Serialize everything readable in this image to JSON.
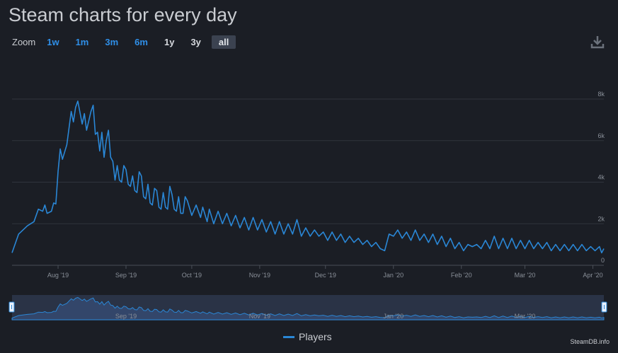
{
  "page": {
    "title": "Steam charts for every day"
  },
  "zoom": {
    "label": "Zoom",
    "buttons": [
      {
        "label": "1w",
        "style": "blue"
      },
      {
        "label": "1m",
        "style": "blue"
      },
      {
        "label": "3m",
        "style": "blue"
      },
      {
        "label": "6m",
        "style": "blue"
      },
      {
        "label": "1y",
        "style": "dark"
      },
      {
        "label": "3y",
        "style": "dark"
      },
      {
        "label": "all",
        "style": "active"
      }
    ]
  },
  "download_icon": "download-icon",
  "legend": {
    "label": "Players",
    "color": "#2a87d6"
  },
  "credit": "SteamDB.info",
  "chart_data": {
    "type": "line",
    "series": [
      {
        "name": "Players",
        "color": "#2a87d6",
        "points": [
          [
            "2019-07-11",
            600
          ],
          [
            "2019-07-14",
            1500
          ],
          [
            "2019-07-18",
            1900
          ],
          [
            "2019-07-21",
            2100
          ],
          [
            "2019-07-23",
            2700
          ],
          [
            "2019-07-25",
            2600
          ],
          [
            "2019-07-26",
            2900
          ],
          [
            "2019-07-27",
            2500
          ],
          [
            "2019-07-29",
            2600
          ],
          [
            "2019-07-30",
            3000
          ],
          [
            "2019-07-31",
            2950
          ],
          [
            "2019-08-01",
            4500
          ],
          [
            "2019-08-02",
            5600
          ],
          [
            "2019-08-03",
            5100
          ],
          [
            "2019-08-05",
            5800
          ],
          [
            "2019-08-07",
            7400
          ],
          [
            "2019-08-08",
            6900
          ],
          [
            "2019-08-09",
            7600
          ],
          [
            "2019-08-10",
            7900
          ],
          [
            "2019-08-12",
            6800
          ],
          [
            "2019-08-13",
            7300
          ],
          [
            "2019-08-14",
            6500
          ],
          [
            "2019-08-16",
            7400
          ],
          [
            "2019-08-17",
            7700
          ],
          [
            "2019-08-18",
            6300
          ],
          [
            "2019-08-19",
            6400
          ],
          [
            "2019-08-20",
            5500
          ],
          [
            "2019-08-21",
            6400
          ],
          [
            "2019-08-22",
            5200
          ],
          [
            "2019-08-23",
            6000
          ],
          [
            "2019-08-24",
            6500
          ],
          [
            "2019-08-25",
            5200
          ],
          [
            "2019-08-26",
            5000
          ],
          [
            "2019-08-27",
            4100
          ],
          [
            "2019-08-28",
            4800
          ],
          [
            "2019-08-29",
            4100
          ],
          [
            "2019-08-30",
            4000
          ],
          [
            "2019-08-31",
            4800
          ],
          [
            "2019-09-01",
            4600
          ],
          [
            "2019-09-02",
            3900
          ],
          [
            "2019-09-03",
            3800
          ],
          [
            "2019-09-04",
            4300
          ],
          [
            "2019-09-05",
            3600
          ],
          [
            "2019-09-06",
            3500
          ],
          [
            "2019-09-07",
            4500
          ],
          [
            "2019-09-08",
            4300
          ],
          [
            "2019-09-09",
            3300
          ],
          [
            "2019-09-10",
            3200
          ],
          [
            "2019-09-11",
            3900
          ],
          [
            "2019-09-12",
            3000
          ],
          [
            "2019-09-13",
            2900
          ],
          [
            "2019-09-14",
            3700
          ],
          [
            "2019-09-15",
            3600
          ],
          [
            "2019-09-16",
            2800
          ],
          [
            "2019-09-17",
            2700
          ],
          [
            "2019-09-18",
            3500
          ],
          [
            "2019-09-19",
            2800
          ],
          [
            "2019-09-20",
            2700
          ],
          [
            "2019-09-21",
            3800
          ],
          [
            "2019-09-22",
            3400
          ],
          [
            "2019-09-23",
            2700
          ],
          [
            "2019-09-24",
            2600
          ],
          [
            "2019-09-25",
            3300
          ],
          [
            "2019-09-26",
            2500
          ],
          [
            "2019-09-27",
            2500
          ],
          [
            "2019-09-28",
            3300
          ],
          [
            "2019-09-29",
            3100
          ],
          [
            "2019-10-01",
            2400
          ],
          [
            "2019-10-03",
            2900
          ],
          [
            "2019-10-05",
            2300
          ],
          [
            "2019-10-06",
            2800
          ],
          [
            "2019-10-08",
            2100
          ],
          [
            "2019-10-09",
            2700
          ],
          [
            "2019-10-11",
            2000
          ],
          [
            "2019-10-13",
            2600
          ],
          [
            "2019-10-15",
            2000
          ],
          [
            "2019-10-17",
            2500
          ],
          [
            "2019-10-19",
            1900
          ],
          [
            "2019-10-21",
            2400
          ],
          [
            "2019-10-23",
            1800
          ],
          [
            "2019-10-25",
            2300
          ],
          [
            "2019-10-27",
            1700
          ],
          [
            "2019-10-29",
            2300
          ],
          [
            "2019-10-31",
            1700
          ],
          [
            "2019-11-02",
            2200
          ],
          [
            "2019-11-04",
            1600
          ],
          [
            "2019-11-06",
            2100
          ],
          [
            "2019-11-08",
            1500
          ],
          [
            "2019-11-10",
            2100
          ],
          [
            "2019-11-12",
            1500
          ],
          [
            "2019-11-14",
            2000
          ],
          [
            "2019-11-16",
            1500
          ],
          [
            "2019-11-18",
            2200
          ],
          [
            "2019-11-20",
            1400
          ],
          [
            "2019-11-22",
            1800
          ],
          [
            "2019-11-24",
            1400
          ],
          [
            "2019-11-26",
            1700
          ],
          [
            "2019-11-28",
            1400
          ],
          [
            "2019-11-30",
            1600
          ],
          [
            "2019-12-02",
            1200
          ],
          [
            "2019-12-04",
            1600
          ],
          [
            "2019-12-06",
            1200
          ],
          [
            "2019-12-08",
            1500
          ],
          [
            "2019-12-10",
            1100
          ],
          [
            "2019-12-12",
            1400
          ],
          [
            "2019-12-14",
            1100
          ],
          [
            "2019-12-16",
            1300
          ],
          [
            "2019-12-18",
            1000
          ],
          [
            "2019-12-20",
            1200
          ],
          [
            "2019-12-22",
            900
          ],
          [
            "2019-12-24",
            1100
          ],
          [
            "2019-12-26",
            800
          ],
          [
            "2019-12-28",
            700
          ],
          [
            "2019-12-30",
            1500
          ],
          [
            "2020-01-01",
            1400
          ],
          [
            "2020-01-03",
            1700
          ],
          [
            "2020-01-05",
            1300
          ],
          [
            "2020-01-07",
            1600
          ],
          [
            "2020-01-09",
            1200
          ],
          [
            "2020-01-11",
            1700
          ],
          [
            "2020-01-13",
            1200
          ],
          [
            "2020-01-15",
            1500
          ],
          [
            "2020-01-17",
            1100
          ],
          [
            "2020-01-19",
            1500
          ],
          [
            "2020-01-21",
            1000
          ],
          [
            "2020-01-23",
            1400
          ],
          [
            "2020-01-25",
            900
          ],
          [
            "2020-01-27",
            1300
          ],
          [
            "2020-01-29",
            800
          ],
          [
            "2020-01-31",
            1100
          ],
          [
            "2020-02-02",
            700
          ],
          [
            "2020-02-04",
            1000
          ],
          [
            "2020-02-06",
            900
          ],
          [
            "2020-02-08",
            1000
          ],
          [
            "2020-02-10",
            800
          ],
          [
            "2020-02-12",
            1200
          ],
          [
            "2020-02-14",
            800
          ],
          [
            "2020-02-16",
            1400
          ],
          [
            "2020-02-18",
            800
          ],
          [
            "2020-02-20",
            1300
          ],
          [
            "2020-02-22",
            800
          ],
          [
            "2020-02-24",
            1300
          ],
          [
            "2020-02-26",
            800
          ],
          [
            "2020-02-28",
            1200
          ],
          [
            "2020-03-01",
            800
          ],
          [
            "2020-03-03",
            1200
          ],
          [
            "2020-03-05",
            800
          ],
          [
            "2020-03-07",
            1100
          ],
          [
            "2020-03-09",
            800
          ],
          [
            "2020-03-11",
            1100
          ],
          [
            "2020-03-13",
            700
          ],
          [
            "2020-03-15",
            1000
          ],
          [
            "2020-03-17",
            700
          ],
          [
            "2020-03-19",
            1000
          ],
          [
            "2020-03-21",
            700
          ],
          [
            "2020-03-23",
            1000
          ],
          [
            "2020-03-25",
            700
          ],
          [
            "2020-03-27",
            1000
          ],
          [
            "2020-03-29",
            700
          ],
          [
            "2020-03-31",
            900
          ],
          [
            "2020-04-02",
            700
          ],
          [
            "2020-04-04",
            900
          ],
          [
            "2020-04-05",
            600
          ],
          [
            "2020-04-06",
            800
          ]
        ]
      }
    ],
    "x_range": [
      "2019-07-11",
      "2020-04-06"
    ],
    "ylim": [
      0,
      8000
    ],
    "y_ticks": [
      {
        "v": 0,
        "label": "0"
      },
      {
        "v": 2000,
        "label": "2k"
      },
      {
        "v": 4000,
        "label": "4k"
      },
      {
        "v": 6000,
        "label": "6k"
      },
      {
        "v": 8000,
        "label": "8k"
      }
    ],
    "x_ticks": [
      {
        "date": "2019-08-01",
        "label": "Aug '19"
      },
      {
        "date": "2019-09-01",
        "label": "Sep '19"
      },
      {
        "date": "2019-10-01",
        "label": "Oct '19"
      },
      {
        "date": "2019-11-01",
        "label": "Nov '19"
      },
      {
        "date": "2019-12-01",
        "label": "Dec '19"
      },
      {
        "date": "2020-01-01",
        "label": "Jan '20"
      },
      {
        "date": "2020-02-01",
        "label": "Feb '20"
      },
      {
        "date": "2020-03-01",
        "label": "Mar '20"
      },
      {
        "date": "2020-04-01",
        "label": "Apr '20"
      }
    ],
    "navigator_ticks": [
      {
        "date": "2019-09-01",
        "label": "Sep '19"
      },
      {
        "date": "2019-11-01",
        "label": "Nov '19"
      },
      {
        "date": "2020-01-01",
        "label": "Jan '20"
      },
      {
        "date": "2020-03-01",
        "label": "Mar '20"
      }
    ],
    "grid": true,
    "legend_position": "bottom"
  }
}
